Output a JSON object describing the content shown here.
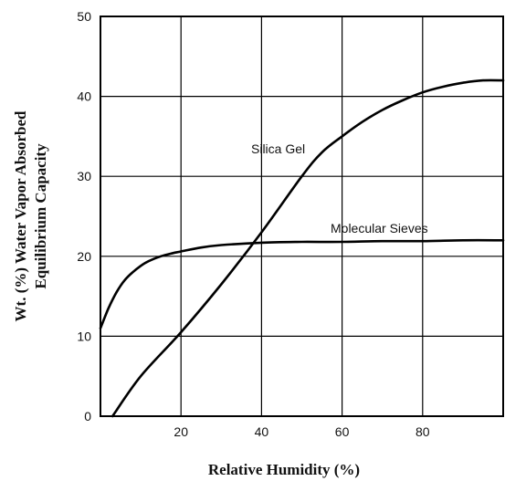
{
  "chart_data": {
    "type": "line",
    "title": "",
    "xlabel": "Relative Humidity (%)",
    "ylabel_line1": "Wt. (%) Water Vapor Absorbed",
    "ylabel_line2": "Equilibrium Capacity",
    "xlim": [
      0,
      100
    ],
    "ylim": [
      0,
      50
    ],
    "xticks": [
      20,
      40,
      60,
      80
    ],
    "yticks": [
      0,
      10,
      20,
      30,
      40,
      50
    ],
    "grid": true,
    "legend": "inline-labels",
    "series": [
      {
        "name": "Silica Gel",
        "color": "#000000",
        "x": [
          3,
          10,
          20,
          30,
          40,
          50,
          55,
          60,
          65,
          70,
          75,
          80,
          85,
          90,
          95,
          100
        ],
        "y": [
          0,
          5,
          10.5,
          16.5,
          23,
          30,
          33,
          35,
          36.8,
          38.3,
          39.5,
          40.5,
          41.2,
          41.7,
          42,
          42
        ]
      },
      {
        "name": "Molecular Sieves",
        "color": "#000000",
        "x": [
          0,
          2,
          4,
          6,
          8,
          10,
          12,
          15,
          18,
          20,
          25,
          30,
          40,
          50,
          60,
          70,
          80,
          90,
          100
        ],
        "y": [
          11,
          13.5,
          15.5,
          17,
          18,
          18.8,
          19.4,
          20,
          20.4,
          20.6,
          21.1,
          21.4,
          21.7,
          21.8,
          21.8,
          21.9,
          21.9,
          22,
          22
        ]
      }
    ]
  }
}
